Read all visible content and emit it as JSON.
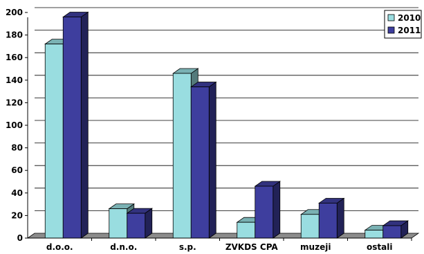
{
  "chart_data": {
    "type": "bar",
    "categories": [
      "d.o.o.",
      "d.n.o.",
      "s.p.",
      "ZVKDS CPA",
      "muzeji",
      "ostali"
    ],
    "series": [
      {
        "name": "2010",
        "values": [
          172,
          26,
          146,
          14,
          21,
          7
        ],
        "color": "#99DDE0"
      },
      {
        "name": "2011",
        "values": [
          196,
          22,
          134,
          46,
          31,
          11
        ],
        "color": "#3E3E9E"
      }
    ],
    "y_ticks": [
      "0",
      "20",
      "40",
      "60",
      "80",
      "100",
      "120",
      "140",
      "160",
      "180",
      "200"
    ],
    "ylim": [
      0,
      200
    ],
    "grid": true,
    "legend": "top-right",
    "floor_color": "#8C8C8C"
  }
}
